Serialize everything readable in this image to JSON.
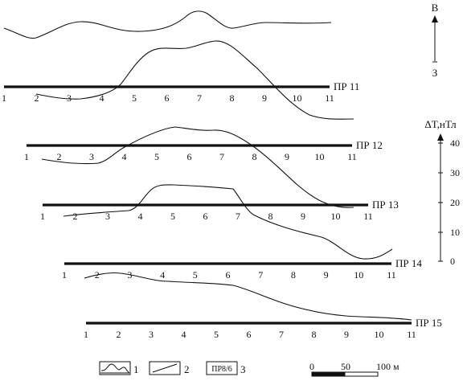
{
  "north_arrow": {
    "top_label": "В",
    "bottom_label": "З"
  },
  "scale_axis": {
    "title": "ΔT,нТл",
    "ticks": [
      "40",
      "30",
      "20",
      "10",
      "0"
    ]
  },
  "profiles": [
    {
      "name": "ПР 11",
      "picket_labels": [
        "1",
        "2",
        "3",
        "4",
        "5",
        "6",
        "7",
        "8",
        "9",
        "10",
        "11"
      ]
    },
    {
      "name": "ПР 12",
      "picket_labels": [
        "1",
        "2",
        "3",
        "4",
        "5",
        "6",
        "7",
        "8",
        "9",
        "10",
        "11"
      ]
    },
    {
      "name": "ПР 13",
      "picket_labels": [
        "1",
        "2",
        "3",
        "4",
        "5",
        "6",
        "7",
        "8",
        "9",
        "10",
        "11"
      ]
    },
    {
      "name": "ПР 14",
      "picket_labels": [
        "1",
        "2",
        "3",
        "4",
        "5",
        "6",
        "7",
        "8",
        "9",
        "10",
        "11"
      ]
    },
    {
      "name": "ПР 15",
      "picket_labels": [
        "1",
        "2",
        "3",
        "4",
        "5",
        "6",
        "7",
        "8",
        "9",
        "10",
        "11"
      ]
    }
  ],
  "legend": [
    {
      "number": "1"
    },
    {
      "number": "2"
    },
    {
      "box_text": "ПР8/6",
      "number": "3"
    }
  ],
  "scale_bar": {
    "labels": [
      "0",
      "50",
      "100 м"
    ]
  }
}
